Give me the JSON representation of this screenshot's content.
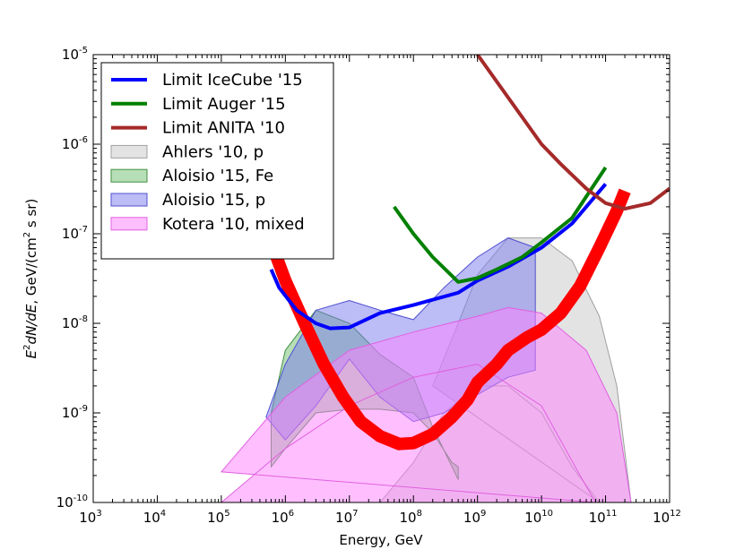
{
  "chart_data": {
    "type": "line",
    "xscale": "log",
    "yscale": "log",
    "xlim": [
      1000,
      1000000000000
    ],
    "ylim": [
      1e-10,
      1e-05
    ],
    "xlabel": "Energy, GeV",
    "ylabel": {
      "prefix": "E",
      "sup": "2",
      "mid": "dN/dE",
      "units": ", GeV/(cm",
      "units_sup": "2",
      "units_end": " s sr)"
    },
    "x_ticks": [
      {
        "base": "10",
        "exp": "3",
        "value": 1000
      },
      {
        "base": "10",
        "exp": "4",
        "value": 10000
      },
      {
        "base": "10",
        "exp": "5",
        "value": 100000
      },
      {
        "base": "10",
        "exp": "6",
        "value": 1000000
      },
      {
        "base": "10",
        "exp": "7",
        "value": 10000000
      },
      {
        "base": "10",
        "exp": "8",
        "value": 100000000
      },
      {
        "base": "10",
        "exp": "9",
        "value": 1000000000
      },
      {
        "base": "10",
        "exp": "10",
        "value": 10000000000
      },
      {
        "base": "10",
        "exp": "11",
        "value": 100000000000
      },
      {
        "base": "10",
        "exp": "12",
        "value": 1000000000000
      }
    ],
    "y_ticks": [
      {
        "base": "10",
        "exp": "-10",
        "value": 1e-10
      },
      {
        "base": "10",
        "exp": "-9",
        "value": 1e-09
      },
      {
        "base": "10",
        "exp": "-8",
        "value": 1e-08
      },
      {
        "base": "10",
        "exp": "-7",
        "value": 1e-07
      },
      {
        "base": "10",
        "exp": "-6",
        "value": 1e-06
      },
      {
        "base": "10",
        "exp": "-5",
        "value": 1e-05
      }
    ],
    "legend_position": "top-left",
    "lines": [
      {
        "name": "Limit IceCube '15",
        "color": "#0000ff",
        "x": [
          600000,
          800000,
          1500000,
          3000000,
          5000000,
          10000000,
          30000000,
          100000000,
          500000000,
          1000000000,
          3000000000,
          10000000000,
          30000000000,
          100000000000
        ],
        "y": [
          4e-08,
          2.5e-08,
          1.4e-08,
          1e-08,
          8.8e-09,
          9e-09,
          1.3e-08,
          1.6e-08,
          2.2e-08,
          3e-08,
          4.3e-08,
          7e-08,
          1.3e-07,
          3.6e-07
        ]
      },
      {
        "name": "Limit Auger '15",
        "color": "#008000",
        "x": [
          50000000,
          100000000,
          200000000,
          500000000,
          1000000000,
          2000000000,
          5000000000,
          10000000000,
          30000000000,
          100000000000
        ],
        "y": [
          2e-07,
          1e-07,
          5.5e-08,
          2.9e-08,
          3.2e-08,
          4e-08,
          5.5e-08,
          8e-08,
          1.5e-07,
          5.5e-07
        ]
      },
      {
        "name": "Limit ANITA '10",
        "color": "#a52a2a",
        "x": [
          1000000000,
          2000000000,
          5000000000,
          10000000000,
          20000000000,
          50000000000,
          100000000000,
          200000000000,
          500000000000,
          1000000000000
        ],
        "y": [
          1e-05,
          5e-06,
          2e-06,
          1e-06,
          6e-07,
          3.2e-07,
          2.2e-07,
          1.9e-07,
          2.2e-07,
          3.2e-07
        ]
      }
    ],
    "reference_curve": {
      "color": "#ff0000",
      "x": [
        600000,
        1000000,
        2000000,
        4000000,
        8000000,
        15000000,
        30000000,
        60000000,
        100000000,
        200000000,
        400000000,
        700000000,
        1000000000,
        2000000000,
        3000000000,
        6000000000,
        10000000000,
        20000000000,
        40000000000,
        80000000000,
        150000000000,
        200000000000
      ],
      "y": [
        8e-08,
        3e-08,
        1e-08,
        3.5e-09,
        1.5e-09,
        8e-10,
        5.5e-10,
        4.5e-10,
        4.6e-10,
        5.8e-10,
        9e-10,
        1.4e-09,
        2.2e-09,
        3.5e-09,
        5e-09,
        7e-09,
        8.5e-09,
        1.3e-08,
        2.6e-08,
        7e-08,
        1.8e-07,
        3e-07
      ]
    },
    "bands": [
      {
        "name": "Ahlers '10, p",
        "color": "#c8c8c8",
        "border": "#a0a0a0",
        "x_lower": [
          3000000,
          10000000,
          30000000,
          100000000,
          300000000,
          1000000000,
          3000000000,
          10000000000,
          30000000000,
          80000000000
        ],
        "y_lower": [
          1e-10,
          1e-10,
          1e-10,
          2.8e-10,
          1e-09,
          2e-09,
          2e-09,
          1e-09,
          2.5e-10,
          1e-10
        ],
        "x_upper": [
          200000000,
          500000000,
          1000000000,
          3000000000,
          10000000000,
          30000000000,
          80000000000,
          150000000000,
          250000000000
        ],
        "y_upper": [
          2e-09,
          1e-08,
          3.5e-08,
          9e-08,
          9e-08,
          5e-08,
          1.2e-08,
          2e-09,
          1e-10
        ]
      },
      {
        "name": "Aloisio '15, Fe",
        "color": "#6fbf6f",
        "border": "#3f8f3f",
        "x_lower": [
          600000,
          1000000,
          3000000,
          10000000,
          30000000,
          100000000,
          200000000,
          400000000,
          500000000
        ],
        "y_lower": [
          2.5e-10,
          4e-10,
          1e-09,
          1.1e-09,
          1.1e-09,
          1e-09,
          6e-10,
          2.8e-10,
          2.5e-10
        ],
        "x_upper": [
          500000000,
          400000000,
          200000000,
          100000000,
          30000000,
          10000000,
          3000000,
          1000000,
          600000
        ],
        "y_upper": [
          1.8e-10,
          2.5e-10,
          7e-10,
          2.5e-09,
          4.5e-09,
          1e-08,
          1.4e-08,
          5e-09,
          1e-09
        ]
      },
      {
        "name": "Aloisio '15, p",
        "color": "#7a7aee",
        "border": "#5050d0",
        "x_lower": [
          500000,
          1000000,
          3000000,
          10000000,
          30000000,
          100000000,
          300000000,
          1000000000,
          3000000000,
          8000000000
        ],
        "y_lower": [
          9e-10,
          5e-10,
          1.2e-09,
          4e-09,
          1.5e-09,
          8e-10,
          1e-09,
          1.6e-09,
          2.5e-09,
          3e-09
        ],
        "x_upper": [
          8000000000,
          3000000000,
          1000000000,
          300000000,
          100000000,
          30000000,
          10000000,
          3000000,
          1000000,
          500000
        ],
        "y_upper": [
          7e-08,
          9e-08,
          5.5e-08,
          2.5e-08,
          1.1e-08,
          1.4e-08,
          1.8e-08,
          1.4e-08,
          3.5e-09,
          9e-10
        ]
      },
      {
        "name": "Kotera '10, mixed",
        "color": "#ff80ff",
        "border": "#e060e0",
        "x_lower": [
          100000,
          1000000,
          10000000,
          100000000,
          1000000000,
          10000000000,
          40000000000,
          70000000000
        ],
        "y_lower": [
          1e-10,
          4e-10,
          1.2e-09,
          2.5e-09,
          3.5e-09,
          1.2e-09,
          2e-10,
          1e-10
        ],
        "x_upper": [
          100000,
          1000000,
          10000000,
          100000000,
          1000000000,
          3000000000,
          10000000000,
          50000000000,
          150000000000,
          250000000000
        ],
        "y_upper": [
          2.2e-10,
          1.5e-09,
          5e-09,
          8e-09,
          1.2e-08,
          1.5e-08,
          1.3e-08,
          5e-09,
          1e-09,
          1e-10
        ]
      }
    ]
  }
}
